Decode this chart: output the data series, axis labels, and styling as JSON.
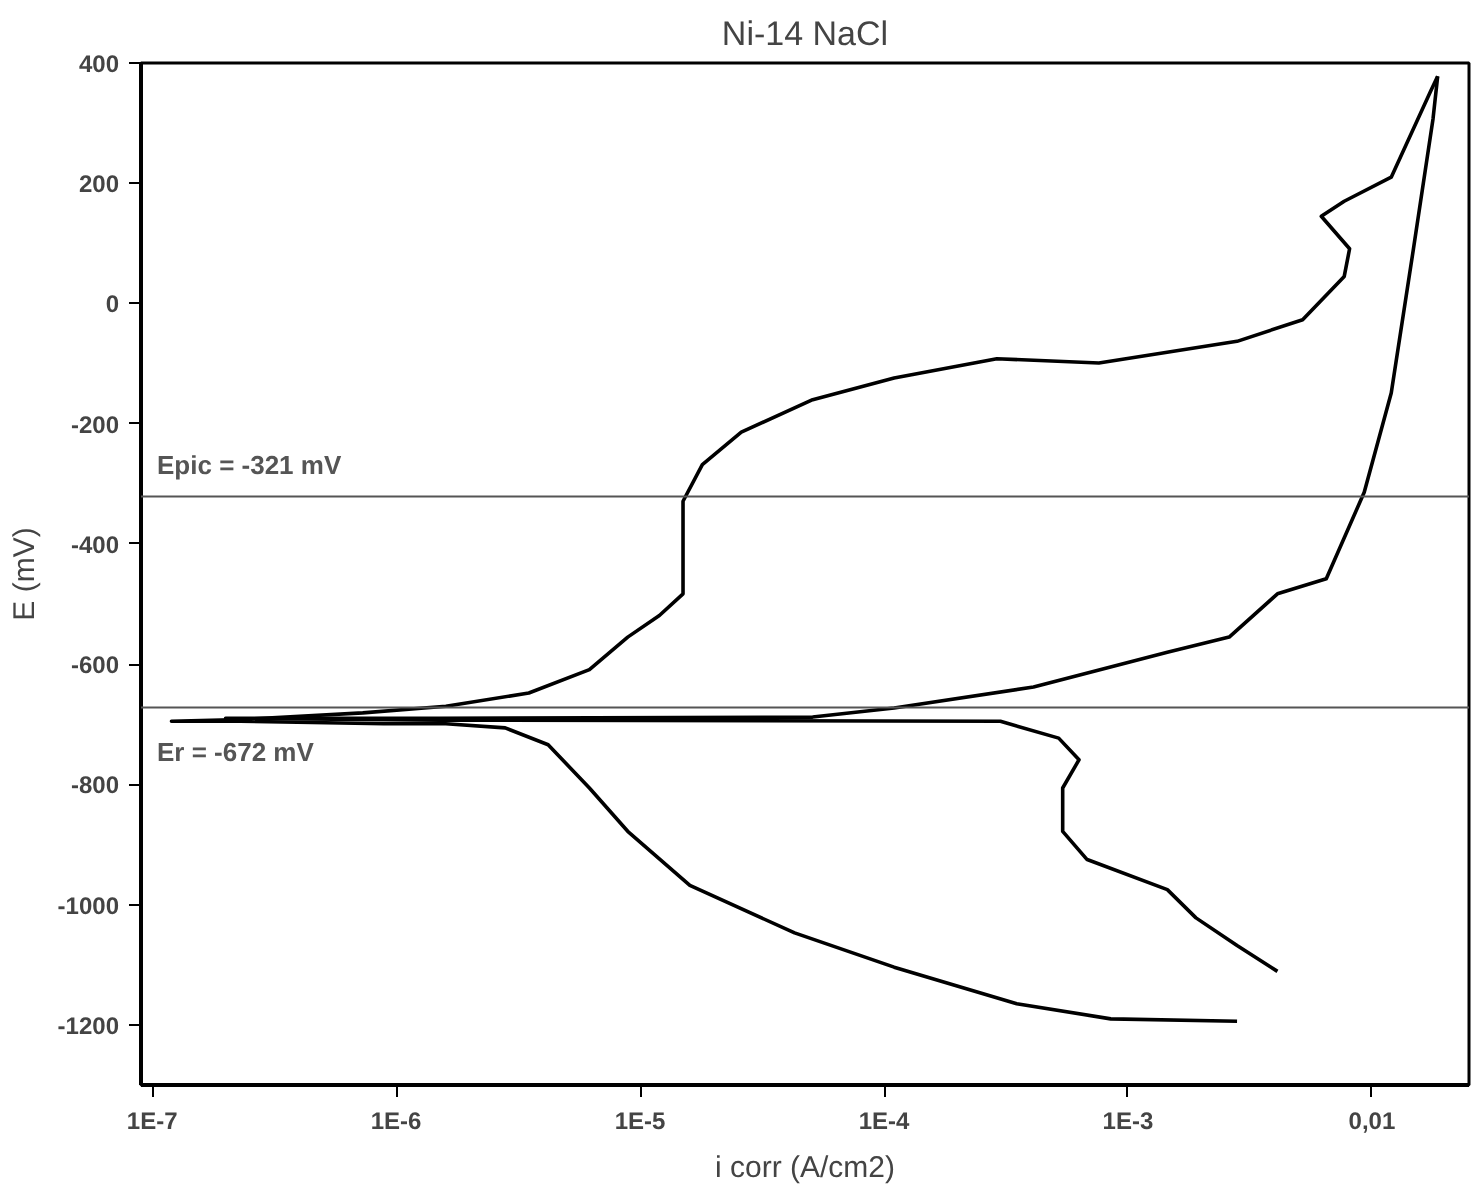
{
  "chart_data": {
    "type": "line",
    "title": "Ni-14 NaCl",
    "xlabel": "i corr (A/cm2)",
    "ylabel": "E (mV)",
    "log": "x",
    "grid": false,
    "marker": "none",
    "line_style": "solid",
    "xlim": [
      9e-08,
      0.025
    ],
    "ylim": [
      -1300,
      400
    ],
    "xticks": [
      {
        "value": 1e-07,
        "label": "1E-7"
      },
      {
        "value": 1e-06,
        "label": "1E-6"
      },
      {
        "value": 1e-05,
        "label": "1E-5"
      },
      {
        "value": 0.0001,
        "label": "1E-4"
      },
      {
        "value": 0.001,
        "label": "1E-3"
      },
      {
        "value": 0.01,
        "label": "0,01"
      }
    ],
    "yticks": [
      -1200,
      -1000,
      -800,
      -600,
      -400,
      -200,
      0,
      200,
      400
    ],
    "ref_lines": [
      {
        "axis": "y",
        "value": -321,
        "label": "Epic = -321 mV",
        "color": "#555555"
      },
      {
        "axis": "y",
        "value": -672,
        "label": "Er = -672 mV",
        "color": "#555555"
      }
    ],
    "series": [
      {
        "color": "#000000",
        "x": [
          0.0028,
          0.00085,
          0.00035,
          0.00011,
          4.3e-05,
          1.6e-05,
          8.9e-06,
          6.2e-06,
          4.2e-06,
          2.8e-06,
          1.6e-06,
          8.9e-07,
          2.3e-07,
          1.2e-07,
          2.3e-07,
          7.3e-07,
          1.6e-06,
          3.5e-06,
          6.2e-06,
          8.9e-06,
          1.2e-05,
          1.5e-05,
          1.5e-05,
          1.5e-05,
          1.8e-05,
          2.6e-05,
          5.1e-05,
          0.00011,
          0.00029,
          0.00076,
          0.0028,
          0.0052,
          0.0077,
          0.0081,
          0.0062,
          0.0077,
          0.012,
          0.0174,
          0.0186
        ],
        "values": [
          -1194,
          -1190,
          -1165,
          -1104,
          -1047,
          -968,
          -878,
          -806,
          -734,
          -706,
          -699,
          -699,
          -695,
          -695,
          -692,
          -681,
          -670,
          -648,
          -609,
          -555,
          -519,
          -483,
          -400,
          -329,
          -268,
          -214,
          -160,
          -124,
          -92,
          -99,
          -63,
          -27,
          45,
          91,
          145,
          170,
          210,
          353,
          378
        ]
      },
      {
        "color": "#000000",
        "x": [
          0.0186,
          0.0178,
          0.0148,
          0.012,
          0.0093,
          0.0065,
          0.0041,
          0.0026,
          0.00145,
          0.00041,
          0.00011,
          5.1e-05,
          1.5e-06,
          2e-07,
          1.5e-06,
          0.0003,
          0.00052,
          0.00063,
          0.00054,
          0.00054,
          0.00068,
          0.00145,
          0.0019,
          0.0028,
          0.0041
        ],
        "values": [
          378,
          307,
          91,
          -149,
          -314,
          -458,
          -483,
          -555,
          -580,
          -638,
          -673,
          -688,
          -690,
          -690,
          -693,
          -695,
          -723,
          -759,
          -806,
          -878,
          -925,
          -975,
          -1022,
          -1068,
          -1111
        ]
      }
    ]
  }
}
